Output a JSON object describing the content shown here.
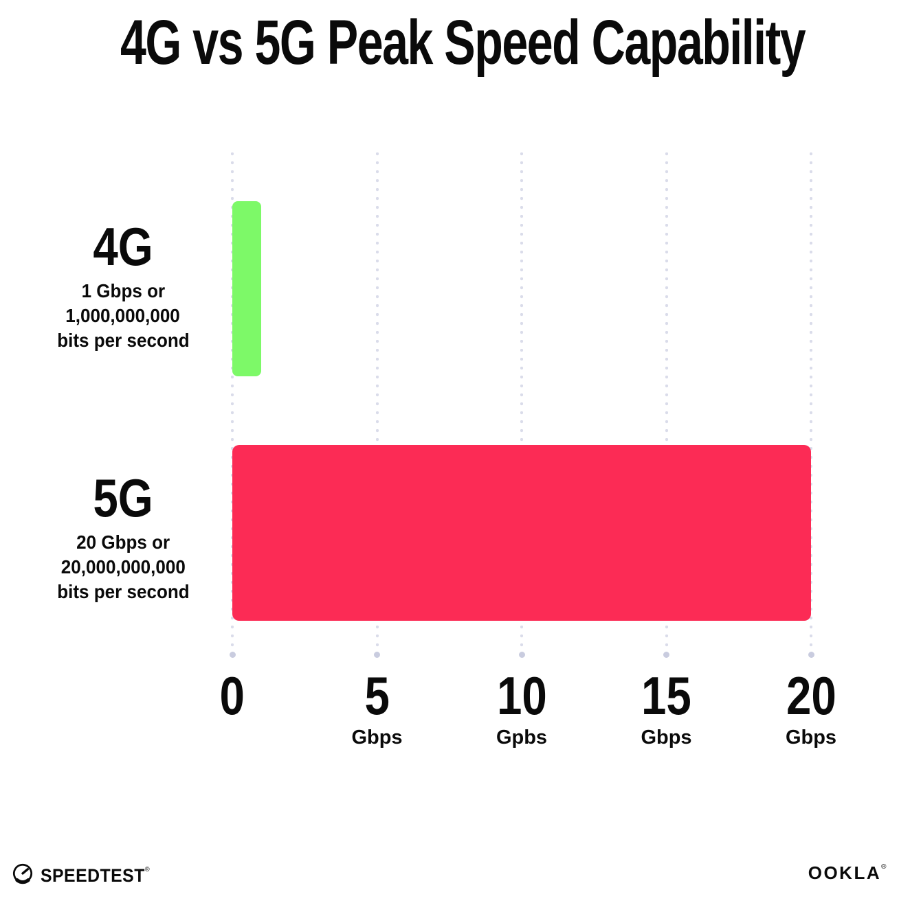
{
  "title": "4G vs 5G Peak Speed Capability",
  "chart_data": {
    "type": "bar",
    "orientation": "horizontal",
    "title": "4G vs 5G Peak Speed Capability",
    "categories": [
      "4G",
      "5G"
    ],
    "values": [
      1,
      20
    ],
    "value_unit": "Gbps",
    "annotations": [
      "1 Gbps or 1,000,000,000 bits per second",
      "20 Gbps or 20,000,000,000 bits per second"
    ],
    "xlim": [
      0,
      20
    ],
    "x_ticks": [
      0,
      5,
      10,
      15,
      20
    ],
    "grid": "dotted-vertical",
    "legend": "none",
    "bar_colors": [
      "#7df968",
      "#fc2b55"
    ]
  },
  "rows": [
    {
      "label": "4G",
      "line1": "1 Gbps or",
      "line2": "1,000,000,000",
      "line3": "bits per second"
    },
    {
      "label": "5G",
      "line1": "20 Gbps or",
      "line2": "20,000,000,000",
      "line3": "bits per second"
    }
  ],
  "x_axis": {
    "ticks": [
      {
        "num": "0",
        "unit": ""
      },
      {
        "num": "5",
        "unit": "Gbps"
      },
      {
        "num": "10",
        "unit": "Gpbs"
      },
      {
        "num": "15",
        "unit": "Gbps"
      },
      {
        "num": "20",
        "unit": "Gbps"
      }
    ]
  },
  "colors": {
    "bar_4g": "#7df968",
    "bar_5g": "#fc2b55",
    "grid_dot": "#dadcea",
    "axis_end_dot": "#c9ccdf",
    "text": "#0a0a0a",
    "background": "#ffffff"
  },
  "footer": {
    "speedtest_label": "SPEEDTEST",
    "speedtest_mark": "®",
    "ookla_label": "OOKLA",
    "ookla_mark": "®"
  }
}
